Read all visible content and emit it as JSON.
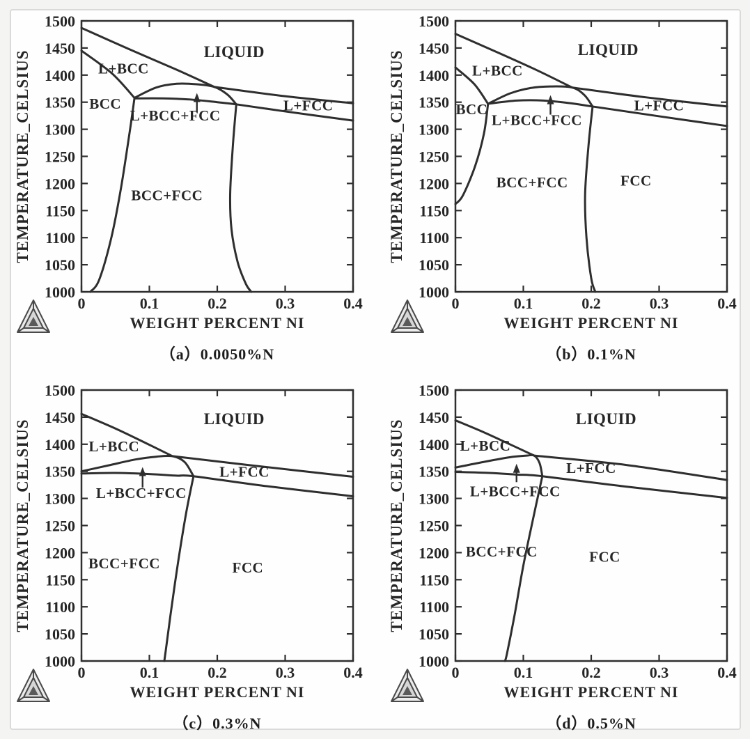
{
  "figure": {
    "page_background": "#f4f4f3",
    "card_background": "#fefefe",
    "card_border_color": "#dadada",
    "line_color": "#2e2e2e",
    "text_color": "#262626",
    "logo_name": "thermo-calc-triangle-logo"
  },
  "chart_data": [
    {
      "id": "a",
      "type": "line",
      "caption": "（a）0.0050%N",
      "xlabel": "WEIGHT PERCENT NI",
      "ylabel": "TEMPERATURE_CELSIUS",
      "xlim": [
        0,
        0.4
      ],
      "ylim": [
        1000,
        1500
      ],
      "xticks": [
        0,
        0.1,
        0.2,
        0.3,
        0.4
      ],
      "yticks": [
        1000,
        1050,
        1100,
        1150,
        1200,
        1250,
        1300,
        1350,
        1400,
        1450,
        1500
      ],
      "grid": false,
      "legend": "none",
      "series": [
        {
          "name": "liquidus",
          "points": [
            [
              0,
              1487
            ],
            [
              0.07,
              1448
            ],
            [
              0.14,
              1410
            ],
            [
              0.196,
              1378
            ]
          ]
        },
        {
          "name": "l-fcc-upper-boundary",
          "points": [
            [
              0.196,
              1378
            ],
            [
              0.3,
              1361
            ],
            [
              0.4,
              1348
            ]
          ]
        },
        {
          "name": "bcc-solidus",
          "points": [
            [
              0,
              1445
            ],
            [
              0.045,
              1403
            ],
            [
              0.078,
              1358
            ]
          ]
        },
        {
          "name": "l-bcc-fcc-dome",
          "points": [
            [
              0.078,
              1358
            ],
            [
              0.11,
              1377
            ],
            [
              0.14,
              1384
            ],
            [
              0.17,
              1383
            ],
            [
              0.196,
              1378
            ],
            [
              0.215,
              1364
            ],
            [
              0.228,
              1346
            ]
          ]
        },
        {
          "name": "fcc-solidus",
          "points": [
            [
              0.078,
              1357
            ],
            [
              0.12,
              1357
            ],
            [
              0.16,
              1355
            ],
            [
              0.2,
              1350
            ],
            [
              0.228,
              1346
            ],
            [
              0.3,
              1333
            ],
            [
              0.4,
              1316
            ]
          ]
        },
        {
          "name": "bcc-left-boundary",
          "points": [
            [
              0.078,
              1357
            ],
            [
              0.071,
              1295
            ],
            [
              0.058,
              1190
            ],
            [
              0.044,
              1100
            ],
            [
              0.026,
              1022
            ],
            [
              0.013,
              1000
            ]
          ]
        },
        {
          "name": "fcc-left-boundary",
          "points": [
            [
              0.228,
              1346
            ],
            [
              0.223,
              1270
            ],
            [
              0.219,
              1180
            ],
            [
              0.221,
              1115
            ],
            [
              0.23,
              1055
            ],
            [
              0.242,
              1015
            ],
            [
              0.25,
              1000
            ]
          ]
        }
      ],
      "region_labels": [
        {
          "text": "LIQUID",
          "x": 0.225,
          "y": 1442,
          "size": 23
        },
        {
          "text": "L+BCC",
          "x": 0.062,
          "y": 1412,
          "size": 21
        },
        {
          "text": "BCC",
          "x": 0.035,
          "y": 1347,
          "size": 21
        },
        {
          "text": "L+BCC+FCC",
          "x": 0.138,
          "y": 1325,
          "size": 21
        },
        {
          "text": "L+FCC",
          "x": 0.334,
          "y": 1344,
          "size": 21
        },
        {
          "text": "BCC+FCC",
          "x": 0.126,
          "y": 1178,
          "size": 21
        }
      ],
      "arrow": {
        "x": 0.17,
        "y_from": 1331,
        "y_to": 1367
      }
    },
    {
      "id": "b",
      "type": "line",
      "caption": "（b）0.1%N",
      "xlabel": "WEIGHT PERCENT NI",
      "ylabel": "TEMPERATURE_CELSIUS",
      "xlim": [
        0,
        0.4
      ],
      "ylim": [
        1000,
        1500
      ],
      "xticks": [
        0,
        0.1,
        0.2,
        0.3,
        0.4
      ],
      "yticks": [
        1000,
        1050,
        1100,
        1150,
        1200,
        1250,
        1300,
        1350,
        1400,
        1450,
        1500
      ],
      "grid": false,
      "legend": "none",
      "series": [
        {
          "name": "liquidus",
          "points": [
            [
              0,
              1476
            ],
            [
              0.06,
              1443
            ],
            [
              0.12,
              1409
            ],
            [
              0.172,
              1377
            ]
          ]
        },
        {
          "name": "l-fcc-upper-boundary",
          "points": [
            [
              0.172,
              1377
            ],
            [
              0.28,
              1359
            ],
            [
              0.4,
              1342
            ]
          ]
        },
        {
          "name": "bcc-solidus",
          "points": [
            [
              0,
              1414
            ],
            [
              0.028,
              1383
            ],
            [
              0.048,
              1347
            ]
          ]
        },
        {
          "name": "l-bcc-fcc-dome",
          "points": [
            [
              0.048,
              1347
            ],
            [
              0.08,
              1366
            ],
            [
              0.11,
              1376
            ],
            [
              0.14,
              1379
            ],
            [
              0.172,
              1377
            ],
            [
              0.19,
              1363
            ],
            [
              0.202,
              1342
            ]
          ]
        },
        {
          "name": "fcc-solidus",
          "points": [
            [
              0.048,
              1347
            ],
            [
              0.09,
              1353
            ],
            [
              0.13,
              1353
            ],
            [
              0.17,
              1348
            ],
            [
              0.202,
              1342
            ],
            [
              0.3,
              1324
            ],
            [
              0.4,
              1306
            ]
          ]
        },
        {
          "name": "bcc-left-boundary",
          "points": [
            [
              0.048,
              1347
            ],
            [
              0.042,
              1292
            ],
            [
              0.029,
              1232
            ],
            [
              0.011,
              1178
            ],
            [
              0,
              1162
            ]
          ]
        },
        {
          "name": "fcc-left-boundary",
          "points": [
            [
              0.202,
              1342
            ],
            [
              0.196,
              1270
            ],
            [
              0.191,
              1180
            ],
            [
              0.193,
              1100
            ],
            [
              0.2,
              1025
            ],
            [
              0.206,
              1000
            ]
          ]
        }
      ],
      "region_labels": [
        {
          "text": "LIQUID",
          "x": 0.225,
          "y": 1446,
          "size": 23
        },
        {
          "text": "L+BCC",
          "x": 0.062,
          "y": 1408,
          "size": 21
        },
        {
          "text": "BCC",
          "x": 0.024,
          "y": 1337,
          "size": 21
        },
        {
          "text": "L+BCC+FCC",
          "x": 0.12,
          "y": 1317,
          "size": 21
        },
        {
          "text": "L+FCC",
          "x": 0.3,
          "y": 1344,
          "size": 21
        },
        {
          "text": "BCC+FCC",
          "x": 0.113,
          "y": 1202,
          "size": 21
        },
        {
          "text": "FCC",
          "x": 0.266,
          "y": 1205,
          "size": 21
        }
      ],
      "arrow": {
        "x": 0.14,
        "y_from": 1327,
        "y_to": 1363
      }
    },
    {
      "id": "c",
      "type": "line",
      "caption": "（c）0.3%N",
      "xlabel": "WEIGHT PERCENT NI",
      "ylabel": "TEMPERATURE_CELSIUS",
      "xlim": [
        0,
        0.4
      ],
      "ylim": [
        1000,
        1500
      ],
      "xticks": [
        0,
        0.1,
        0.2,
        0.3,
        0.4
      ],
      "yticks": [
        1000,
        1050,
        1100,
        1150,
        1200,
        1250,
        1300,
        1350,
        1400,
        1450,
        1500
      ],
      "grid": false,
      "legend": "none",
      "series": [
        {
          "name": "liquidus",
          "points": [
            [
              0,
              1456
            ],
            [
              0.05,
              1429
            ],
            [
              0.095,
              1402
            ],
            [
              0.134,
              1378
            ]
          ]
        },
        {
          "name": "l-fcc-upper-boundary",
          "points": [
            [
              0.134,
              1378
            ],
            [
              0.25,
              1361
            ],
            [
              0.4,
              1340
            ]
          ]
        },
        {
          "name": "l-bcc-fcc-dome",
          "points": [
            [
              0,
              1350
            ],
            [
              0.04,
              1361
            ],
            [
              0.08,
              1372
            ],
            [
              0.11,
              1377
            ],
            [
              0.134,
              1378
            ],
            [
              0.152,
              1367
            ],
            [
              0.165,
              1341
            ]
          ]
        },
        {
          "name": "fcc-solidus",
          "points": [
            [
              0,
              1346
            ],
            [
              0.05,
              1347
            ],
            [
              0.1,
              1345
            ],
            [
              0.14,
              1342
            ],
            [
              0.165,
              1341
            ],
            [
              0.27,
              1323
            ],
            [
              0.4,
              1304
            ]
          ]
        },
        {
          "name": "fcc-left-boundary",
          "points": [
            [
              0.165,
              1341
            ],
            [
              0.154,
              1272
            ],
            [
              0.142,
              1180
            ],
            [
              0.131,
              1084
            ],
            [
              0.124,
              1018
            ],
            [
              0.122,
              1000
            ]
          ]
        }
      ],
      "region_labels": [
        {
          "text": "LIQUID",
          "x": 0.225,
          "y": 1446,
          "size": 23
        },
        {
          "text": "L+BCC",
          "x": 0.048,
          "y": 1396,
          "size": 21
        },
        {
          "text": "L+BCC+FCC",
          "x": 0.088,
          "y": 1310,
          "size": 21
        },
        {
          "text": "L+FCC",
          "x": 0.24,
          "y": 1349,
          "size": 21
        },
        {
          "text": "BCC+FCC",
          "x": 0.063,
          "y": 1180,
          "size": 21
        },
        {
          "text": "FCC",
          "x": 0.245,
          "y": 1172,
          "size": 21
        }
      ],
      "arrow": {
        "x": 0.09,
        "y_from": 1320,
        "y_to": 1358
      }
    },
    {
      "id": "d",
      "type": "line",
      "caption": "（d）0.5%N",
      "xlabel": "WEIGHT PERCENT NI",
      "ylabel": "TEMPERATURE_CELSIUS",
      "xlim": [
        0,
        0.4
      ],
      "ylim": [
        1000,
        1500
      ],
      "xticks": [
        0,
        0.1,
        0.2,
        0.3,
        0.4
      ],
      "yticks": [
        1000,
        1050,
        1100,
        1150,
        1200,
        1250,
        1300,
        1350,
        1400,
        1450,
        1500
      ],
      "grid": false,
      "legend": "none",
      "series": [
        {
          "name": "liquidus",
          "points": [
            [
              0,
              1444
            ],
            [
              0.04,
              1423
            ],
            [
              0.08,
              1400
            ],
            [
              0.116,
              1379
            ]
          ]
        },
        {
          "name": "l-fcc-upper-boundary",
          "points": [
            [
              0.116,
              1379
            ],
            [
              0.25,
              1362
            ],
            [
              0.4,
              1334
            ]
          ]
        },
        {
          "name": "l-bcc-fcc-dome",
          "points": [
            [
              0,
              1357
            ],
            [
              0.04,
              1367
            ],
            [
              0.08,
              1376
            ],
            [
              0.105,
              1379
            ],
            [
              0.116,
              1379
            ],
            [
              0.124,
              1365
            ],
            [
              0.128,
              1341
            ]
          ]
        },
        {
          "name": "fcc-solidus",
          "points": [
            [
              0,
              1349
            ],
            [
              0.05,
              1347
            ],
            [
              0.09,
              1344
            ],
            [
              0.128,
              1341
            ],
            [
              0.25,
              1322
            ],
            [
              0.4,
              1301
            ]
          ]
        },
        {
          "name": "fcc-left-boundary",
          "points": [
            [
              0.128,
              1341
            ],
            [
              0.115,
              1266
            ],
            [
              0.1,
              1176
            ],
            [
              0.087,
              1084
            ],
            [
              0.076,
              1014
            ],
            [
              0.073,
              1000
            ]
          ]
        }
      ],
      "region_labels": [
        {
          "text": "LIQUID",
          "x": 0.222,
          "y": 1446,
          "size": 23
        },
        {
          "text": "L+BCC",
          "x": 0.044,
          "y": 1397,
          "size": 21
        },
        {
          "text": "L+BCC+FCC",
          "x": 0.088,
          "y": 1313,
          "size": 21
        },
        {
          "text": "L+FCC",
          "x": 0.2,
          "y": 1356,
          "size": 21
        },
        {
          "text": "BCC+FCC",
          "x": 0.068,
          "y": 1202,
          "size": 21
        },
        {
          "text": "FCC",
          "x": 0.22,
          "y": 1192,
          "size": 21
        }
      ],
      "arrow": {
        "x": 0.09,
        "y_from": 1330,
        "y_to": 1364
      }
    }
  ]
}
